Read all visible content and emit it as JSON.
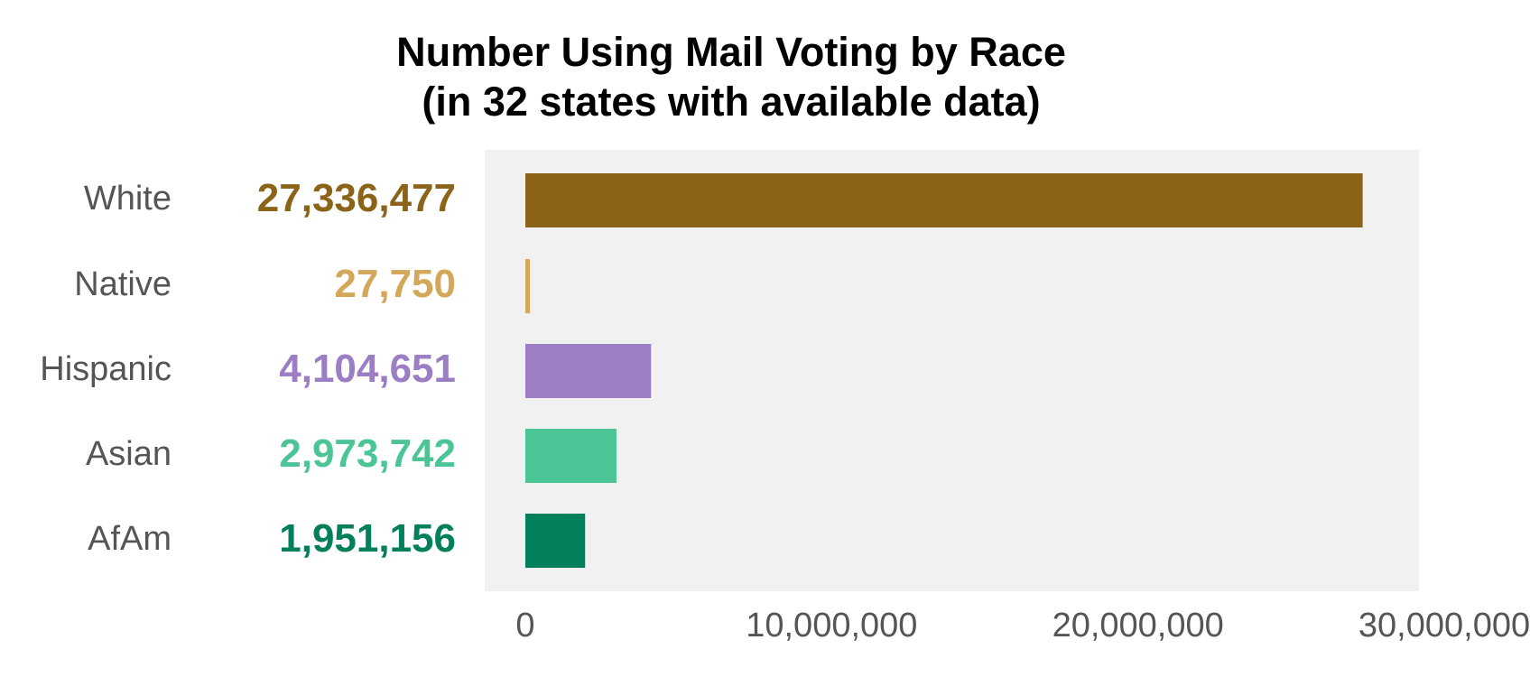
{
  "chart_data": {
    "type": "bar",
    "orientation": "horizontal",
    "title_line1": "Number Using Mail Voting by Race",
    "title_line2": "(in 32 states with available data)",
    "categories": [
      "White",
      "Native",
      "Hispanic",
      "Asian",
      "AfAm"
    ],
    "values": [
      27336477,
      27750,
      4104651,
      2973742,
      1951156
    ],
    "value_labels": [
      "27,336,477",
      "27,750",
      "4,104,651",
      "2,973,742",
      "1,951,156"
    ],
    "colors": [
      "#8B6419",
      "#D4A85A",
      "#9B7EC4",
      "#4BC496",
      "#027F5B"
    ],
    "xlim": [
      0,
      30000000
    ],
    "xticks": [
      0,
      10000000,
      20000000,
      30000000
    ],
    "xtick_labels": [
      "0",
      "10,000,000",
      "20,000,000",
      "30,000,000"
    ],
    "panel_background": "#F1F1F1",
    "grid": false,
    "xlabel": "",
    "ylabel": ""
  }
}
